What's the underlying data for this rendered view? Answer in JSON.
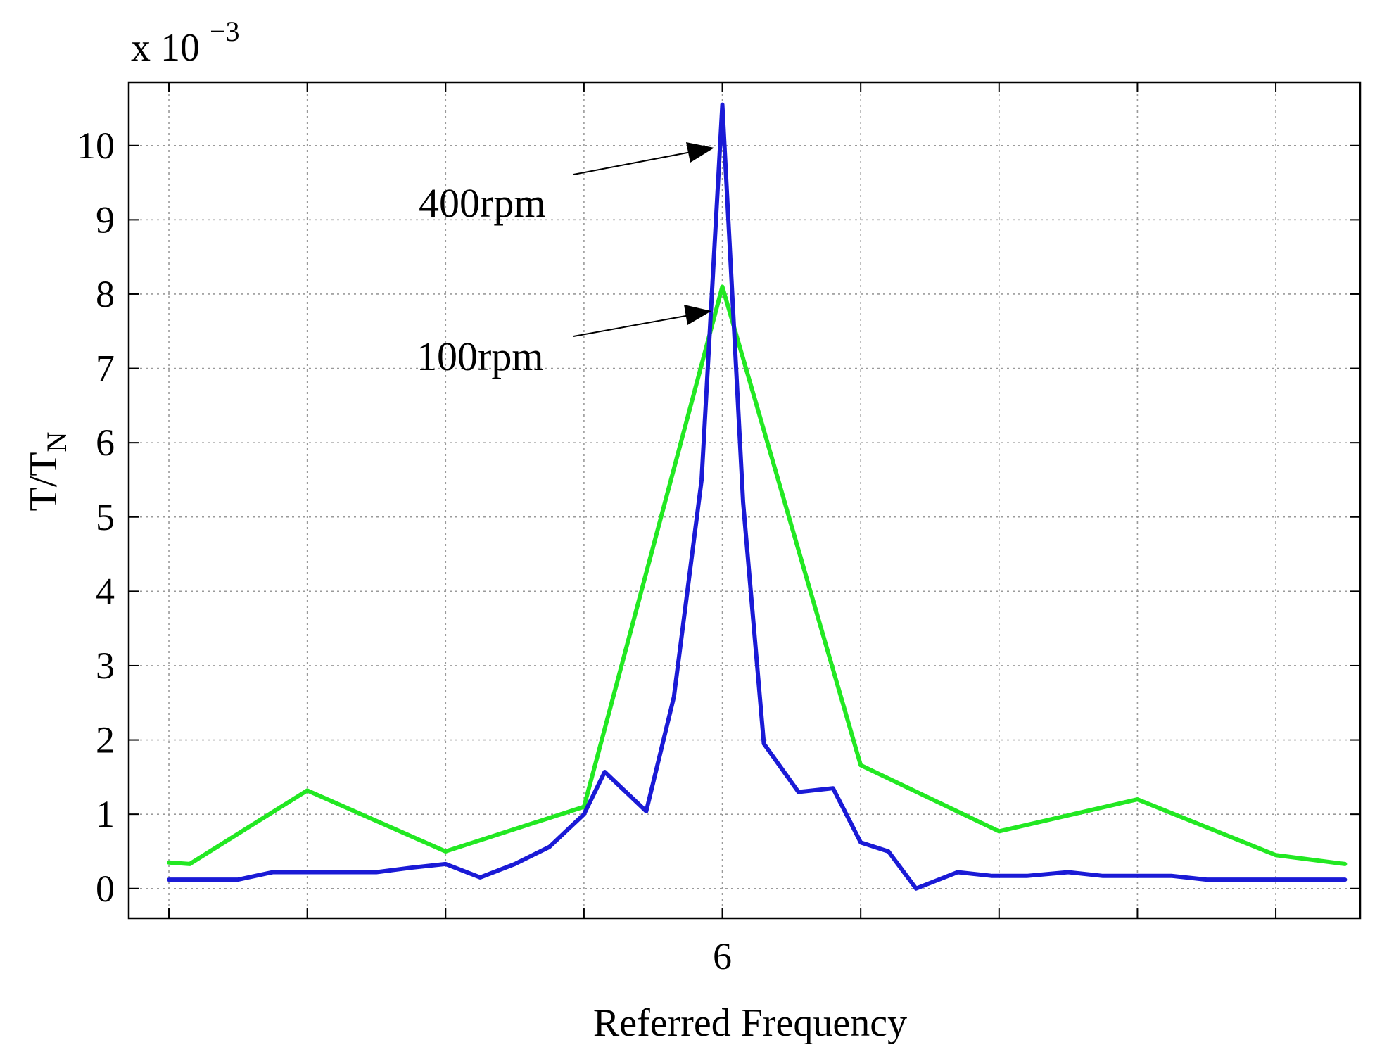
{
  "chart_data": {
    "type": "line",
    "title": "",
    "xlabel": "Referred Frequency",
    "ylabel": "T/T",
    "ylabel_subscript": "N",
    "y_exponent_base": "x 10",
    "y_exponent_power": "−3",
    "xlim": [
      -0.29,
      8.61
    ],
    "ylim": [
      -0.4,
      10.85
    ],
    "x_ticks": [
      6
    ],
    "x_tick_labels": [
      "6"
    ],
    "x_grid": [
      0,
      2,
      3,
      4,
      6,
      7,
      8,
      9,
      10,
      11,
      12,
      13,
      14,
      15
    ],
    "x_grid_note": "grid lines at x-units of 0.125 referred frequency scaled; see rendering",
    "y_ticks": [
      0,
      1,
      2,
      3,
      4,
      5,
      6,
      7,
      8,
      9,
      10
    ],
    "y_tick_labels": [
      "0",
      "1",
      "2",
      "3",
      "4",
      "5",
      "6",
      "7",
      "8",
      "9",
      "10"
    ],
    "grid": true,
    "series": [
      {
        "name": "400rpm",
        "color": "#1a1ad6",
        "x": [
          0.0,
          0.25,
          0.5,
          0.75,
          1.0,
          1.25,
          1.5,
          1.75,
          2.0,
          2.25,
          2.5,
          2.75,
          3.0,
          3.15,
          3.45,
          3.65,
          3.85,
          4.0,
          4.15,
          4.3,
          4.55,
          4.8,
          5.0,
          5.2,
          5.4,
          5.7,
          5.95,
          6.2,
          6.5,
          6.75,
          7.0,
          7.25,
          7.5,
          7.75,
          8.0,
          8.25,
          8.5
        ],
        "y": [
          0.12,
          0.12,
          0.12,
          0.22,
          0.22,
          0.22,
          0.22,
          0.28,
          0.33,
          0.15,
          0.33,
          0.56,
          1.0,
          1.57,
          1.04,
          2.58,
          5.5,
          10.55,
          5.2,
          1.95,
          1.3,
          1.35,
          0.62,
          0.5,
          0.0,
          0.22,
          0.17,
          0.17,
          0.22,
          0.17,
          0.17,
          0.17,
          0.12,
          0.12,
          0.12,
          0.12,
          0.12
        ]
      },
      {
        "name": "100rpm",
        "color": "#22e822",
        "x": [
          0.0,
          0.15,
          1.0,
          2.0,
          3.0,
          4.0,
          5.0,
          6.0,
          7.0,
          8.0,
          8.5
        ],
        "y": [
          0.35,
          0.33,
          1.32,
          0.5,
          1.1,
          8.1,
          1.66,
          0.77,
          1.2,
          0.45,
          0.33
        ]
      }
    ],
    "annotations": [
      {
        "text": "400rpm",
        "target_series": "400rpm"
      },
      {
        "text": "100rpm",
        "target_series": "100rpm"
      }
    ]
  }
}
